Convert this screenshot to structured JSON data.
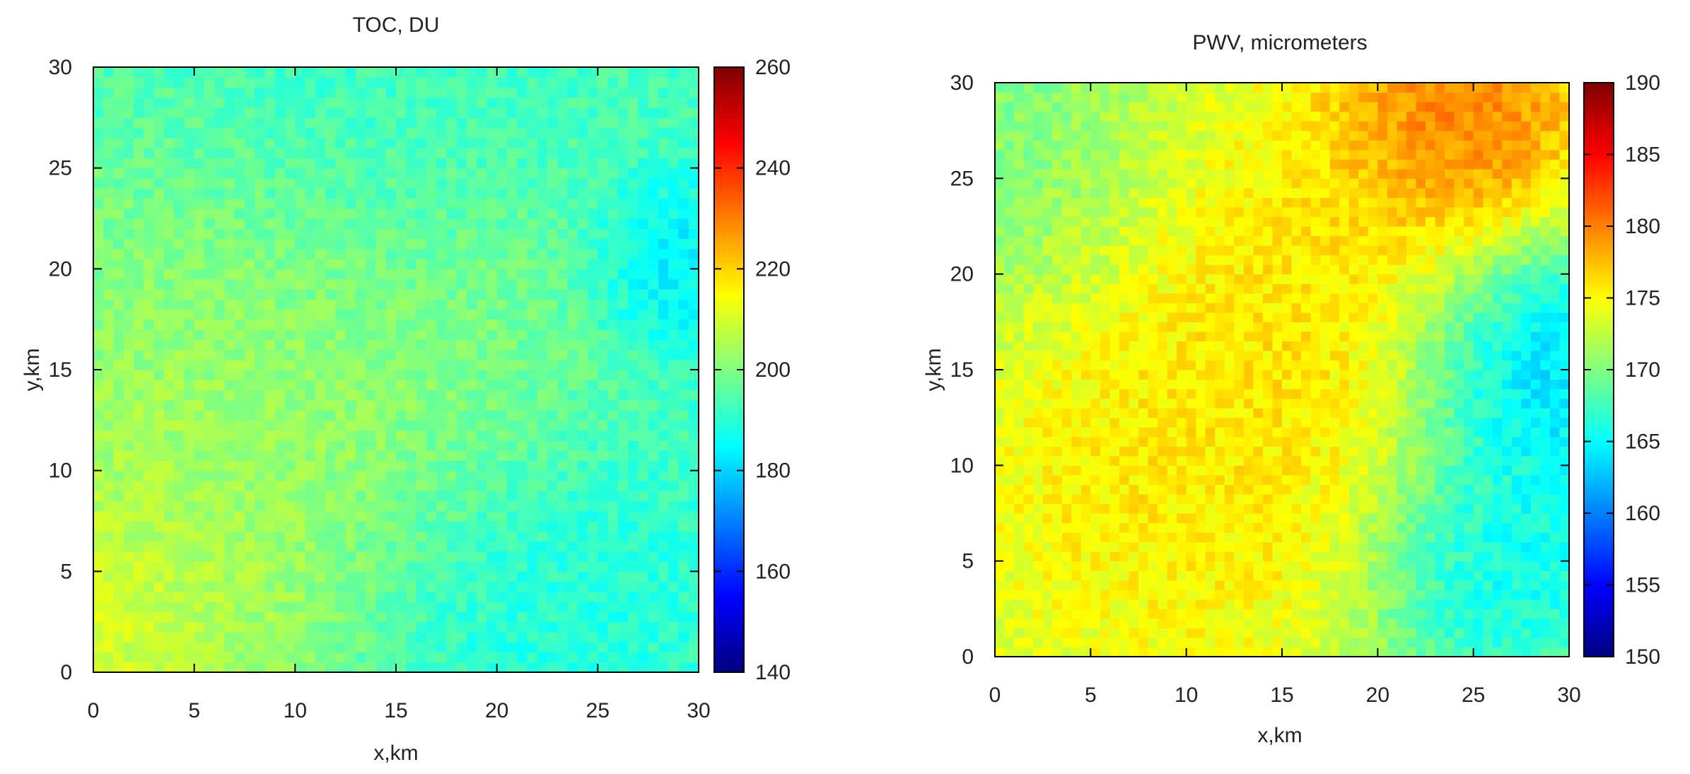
{
  "chart_data": [
    {
      "type": "heatmap",
      "title": "TOC, DU",
      "xlabel": "x,km",
      "ylabel": "y,km",
      "xlim": [
        0,
        30
      ],
      "ylim": [
        0,
        30
      ],
      "x_ticks": [
        "0",
        "5",
        "10",
        "15",
        "20",
        "25",
        "30"
      ],
      "y_ticks": [
        "0",
        "5",
        "10",
        "15",
        "20",
        "25",
        "30"
      ],
      "colorbar": {
        "range": [
          140,
          260
        ],
        "ticks": [
          "140",
          "160",
          "180",
          "200",
          "220",
          "240",
          "260"
        ],
        "colormap": "jet"
      },
      "grid": false,
      "field_description_values": {
        "background": 193,
        "regions": [
          {
            "center": [
              2,
              5
            ],
            "value": 210,
            "spread": 6
          },
          {
            "center": [
              0,
              2
            ],
            "value": 216,
            "spread": 3
          },
          {
            "center": [
              8,
              14
            ],
            "value": 205,
            "spread": 7
          },
          {
            "center": [
              15,
              16
            ],
            "value": 202,
            "spread": 6
          },
          {
            "center": [
              22,
              4
            ],
            "value": 187,
            "spread": 5
          },
          {
            "center": [
              29,
              20
            ],
            "value": 180,
            "spread": 2.5
          },
          {
            "center": [
              14,
              26
            ],
            "value": 190,
            "spread": 5
          }
        ],
        "noise": 4
      }
    },
    {
      "type": "heatmap",
      "title": "PWV, micrometers",
      "xlabel": "x,km",
      "ylabel": "y,km",
      "xlim": [
        0,
        30
      ],
      "ylim": [
        0,
        30
      ],
      "x_ticks": [
        "0",
        "5",
        "10",
        "15",
        "20",
        "25",
        "30"
      ],
      "y_ticks": [
        "0",
        "5",
        "10",
        "15",
        "20",
        "25",
        "30"
      ],
      "colorbar": {
        "range": [
          150,
          190
        ],
        "ticks": [
          "150",
          "155",
          "160",
          "165",
          "170",
          "175",
          "180",
          "185",
          "190"
        ],
        "colormap": "jet"
      },
      "grid": false,
      "field_description_values": {
        "background": 171,
        "regions": [
          {
            "center": [
              10,
              10
            ],
            "value": 177,
            "spread": 8
          },
          {
            "center": [
              15,
              20
            ],
            "value": 177,
            "spread": 7
          },
          {
            "center": [
              24,
              28
            ],
            "value": 183,
            "spread": 4
          },
          {
            "center": [
              28,
              15
            ],
            "value": 160,
            "spread": 4
          },
          {
            "center": [
              26,
              5
            ],
            "value": 163,
            "spread": 4
          },
          {
            "center": [
              2,
              25
            ],
            "value": 169,
            "spread": 5
          }
        ],
        "noise": 1.5
      }
    }
  ]
}
